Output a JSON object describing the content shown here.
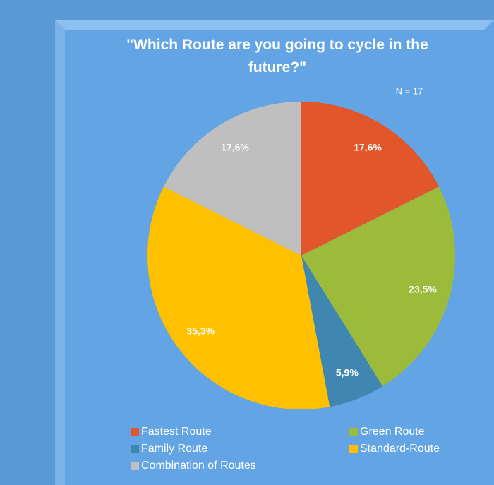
{
  "chart_data": {
    "type": "pie",
    "title": "\"Which Route are you going to cycle in the future?\"",
    "annotation": "N = 17",
    "categories": [
      "Fastest Route",
      "Green Route",
      "Family Route",
      "Standard-Route",
      "Combination of Routes"
    ],
    "values": [
      17.6,
      23.5,
      5.9,
      35.3,
      17.6
    ],
    "value_labels": [
      "17,6%",
      "23,5%",
      "5,9%",
      "35,3%",
      "17,6%"
    ],
    "colors": [
      "#e2572a",
      "#9dbb3a",
      "#3f86b1",
      "#ffc000",
      "#bfbfbf"
    ]
  }
}
